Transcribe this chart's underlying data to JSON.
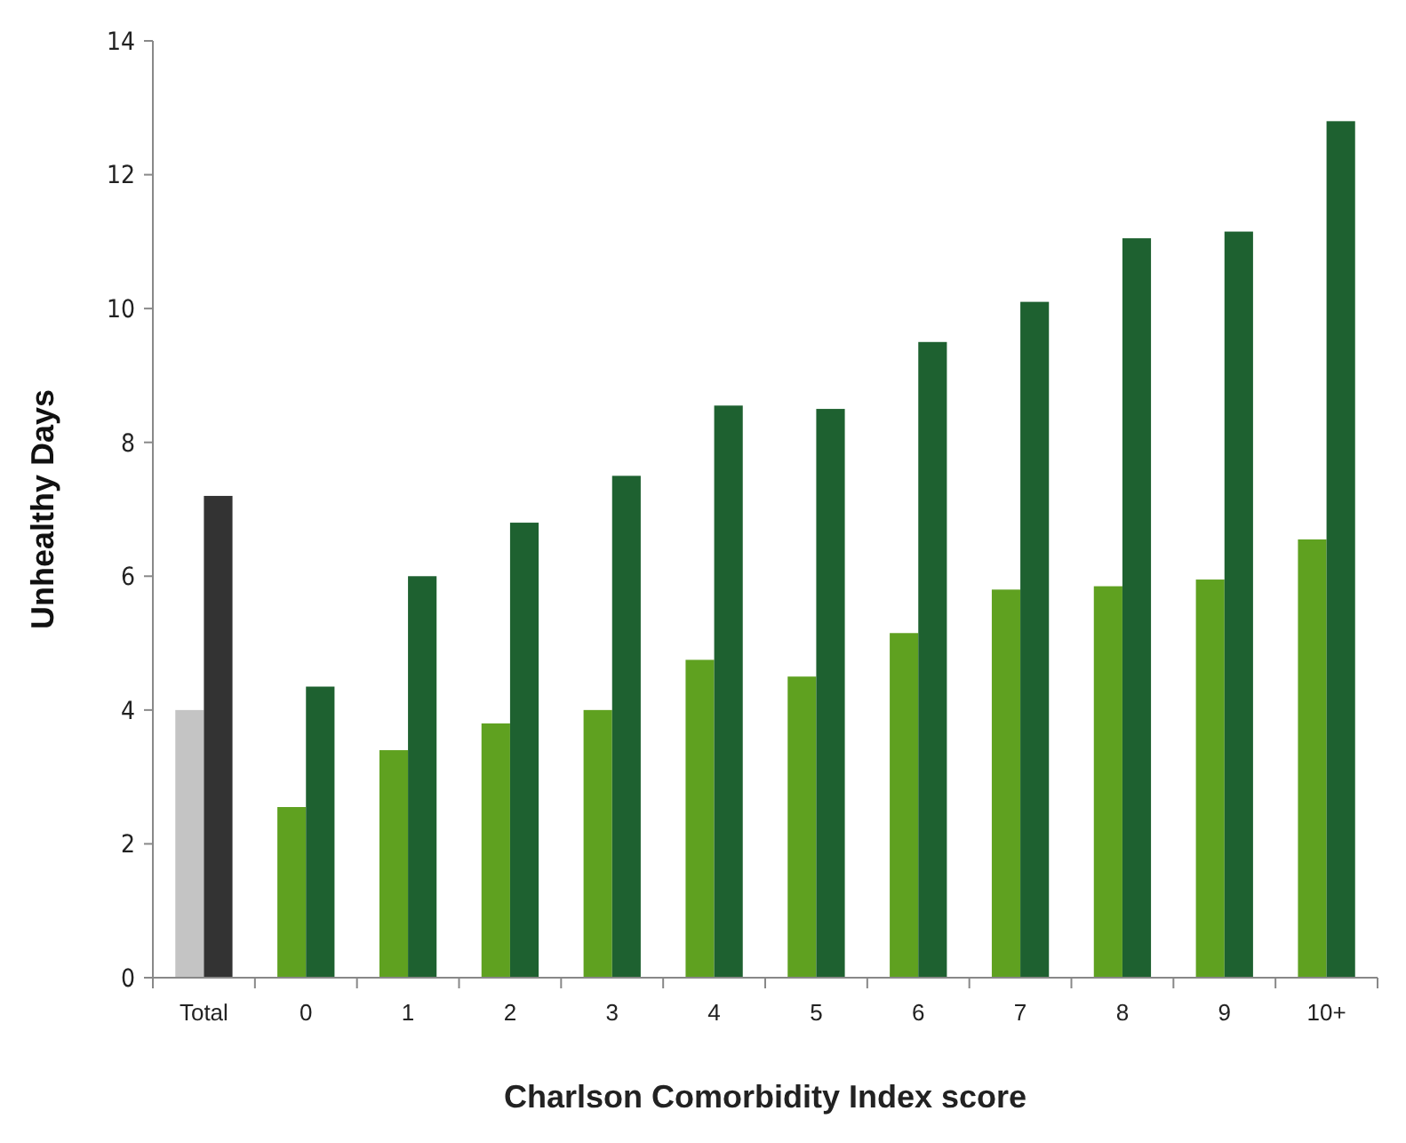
{
  "chart_data": {
    "type": "bar",
    "xlabel": "Charlson Comorbidity Index score",
    "ylabel": "Unhealthy Days",
    "categories": [
      "Total",
      "0",
      "1",
      "2",
      "3",
      "4",
      "5",
      "6",
      "7",
      "8",
      "9",
      "10+"
    ],
    "series": [
      {
        "colors": [
          "#c4c4c4",
          "#5fa120",
          "#5fa120",
          "#5fa120",
          "#5fa120",
          "#5fa120",
          "#5fa120",
          "#5fa120",
          "#5fa120",
          "#5fa120",
          "#5fa120",
          "#5fa120"
        ],
        "values": [
          4.0,
          2.55,
          3.4,
          3.8,
          4.0,
          4.75,
          4.5,
          5.15,
          5.8,
          5.85,
          5.95,
          6.55
        ]
      },
      {
        "colors": [
          "#333333",
          "#1e6130",
          "#1e6130",
          "#1e6130",
          "#1e6130",
          "#1e6130",
          "#1e6130",
          "#1e6130",
          "#1e6130",
          "#1e6130",
          "#1e6130",
          "#1e6130"
        ],
        "values": [
          7.2,
          4.35,
          6.0,
          6.8,
          7.5,
          8.55,
          8.5,
          9.5,
          10.1,
          11.05,
          11.15,
          12.8
        ]
      }
    ],
    "ylim": [
      0,
      14
    ],
    "yticks": [
      0,
      2,
      4,
      6,
      8,
      10,
      12,
      14
    ],
    "grid": false
  }
}
